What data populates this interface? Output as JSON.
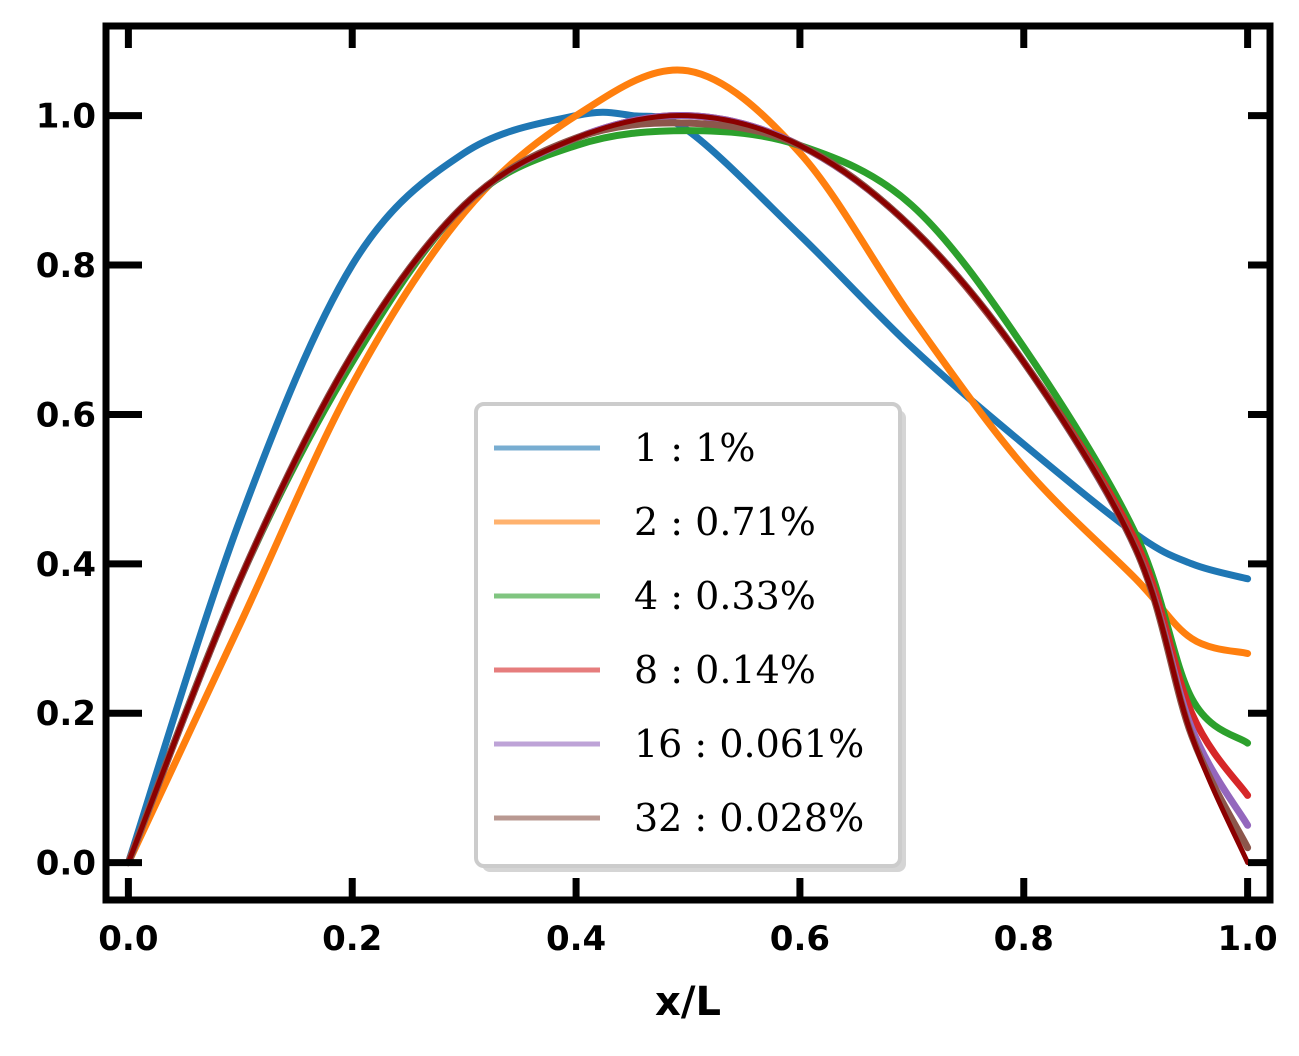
{
  "chart_data": {
    "type": "line",
    "title": "",
    "xlabel": "x/L",
    "ylabel": "",
    "xlim": [
      -0.02,
      1.02
    ],
    "ylim": [
      -0.05,
      1.12
    ],
    "xticks": [
      0.0,
      0.2,
      0.4,
      0.6,
      0.8,
      1.0
    ],
    "xtick_labels": [
      "0.0",
      "0.2",
      "0.4",
      "0.6",
      "0.8",
      "1.0"
    ],
    "yticks": [
      0.0,
      0.2,
      0.4,
      0.6,
      0.8,
      1.0
    ],
    "ytick_labels": [
      "0.0",
      "0.2",
      "0.4",
      "0.6",
      "0.8",
      "1.0"
    ],
    "grid": false,
    "legend_position": "lower center",
    "series": [
      {
        "name": "1 : 1%",
        "color": "#1f77b4",
        "x": [
          0.0,
          0.1,
          0.2,
          0.3,
          0.4,
          0.45,
          0.5,
          0.6,
          0.7,
          0.8,
          0.9,
          0.95,
          1.0
        ],
        "y": [
          0.0,
          0.46,
          0.8,
          0.95,
          1.0,
          1.0,
          0.98,
          0.84,
          0.69,
          0.56,
          0.44,
          0.4,
          0.38
        ]
      },
      {
        "name": "2 : 0.71%",
        "color": "#ff7f0e",
        "x": [
          0.0,
          0.1,
          0.2,
          0.3,
          0.4,
          0.5,
          0.6,
          0.7,
          0.8,
          0.9,
          0.95,
          1.0
        ],
        "y": [
          0.0,
          0.32,
          0.64,
          0.87,
          1.0,
          1.06,
          0.95,
          0.73,
          0.53,
          0.38,
          0.3,
          0.28
        ]
      },
      {
        "name": "4 : 0.33%",
        "color": "#2ca02c",
        "x": [
          0.0,
          0.1,
          0.2,
          0.3,
          0.4,
          0.5,
          0.6,
          0.7,
          0.8,
          0.9,
          0.95,
          1.0
        ],
        "y": [
          0.0,
          0.38,
          0.67,
          0.88,
          0.96,
          0.98,
          0.96,
          0.88,
          0.69,
          0.44,
          0.22,
          0.16
        ]
      },
      {
        "name": "8 : 0.14%",
        "color": "#d62728",
        "x": [
          0.0,
          0.1,
          0.2,
          0.3,
          0.4,
          0.5,
          0.6,
          0.7,
          0.8,
          0.9,
          0.95,
          1.0
        ],
        "y": [
          0.0,
          0.38,
          0.68,
          0.88,
          0.97,
          1.0,
          0.96,
          0.85,
          0.67,
          0.43,
          0.2,
          0.09
        ]
      },
      {
        "name": "16 : 0.061%",
        "color": "#9467bd",
        "x": [
          0.0,
          0.1,
          0.2,
          0.3,
          0.4,
          0.5,
          0.6,
          0.7,
          0.8,
          0.9,
          0.95,
          1.0
        ],
        "y": [
          0.0,
          0.38,
          0.68,
          0.88,
          0.97,
          1.0,
          0.96,
          0.85,
          0.67,
          0.42,
          0.18,
          0.05
        ]
      },
      {
        "name": "32 : 0.028%",
        "color": "#8c564b",
        "x": [
          0.0,
          0.1,
          0.2,
          0.3,
          0.4,
          0.5,
          0.6,
          0.7,
          0.8,
          0.9,
          0.95,
          1.0
        ],
        "y": [
          0.0,
          0.38,
          0.68,
          0.88,
          0.97,
          0.99,
          0.96,
          0.85,
          0.67,
          0.42,
          0.17,
          0.02
        ]
      }
    ],
    "extra_lines": [
      {
        "color": "#8b0000",
        "x": [
          0.0,
          0.1,
          0.2,
          0.3,
          0.4,
          0.5,
          0.6,
          0.7,
          0.8,
          0.9,
          0.95,
          1.0
        ],
        "y": [
          0.0,
          0.38,
          0.68,
          0.88,
          0.97,
          1.0,
          0.96,
          0.85,
          0.67,
          0.42,
          0.17,
          0.0
        ]
      }
    ]
  }
}
